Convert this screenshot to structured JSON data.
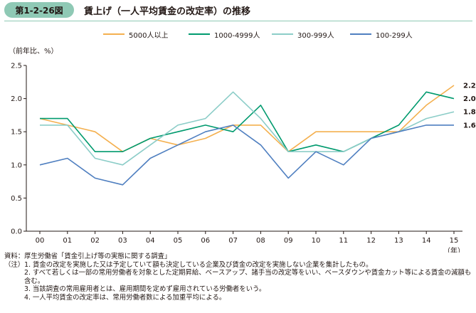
{
  "figure": {
    "number": "第1-2-26図",
    "title": "賃上げ（一人平均賃金の改定率）の推移"
  },
  "chart_data": {
    "type": "line",
    "title": "賃上げ（一人平均賃金の改定率）の推移",
    "y_unit_label": "（前年比、%）",
    "x_unit_label": "（年）",
    "ylim": [
      0,
      2.5
    ],
    "yticks": [
      "0.0",
      "0.5",
      "1.0",
      "1.5",
      "2.0",
      "2.5"
    ],
    "categories": [
      "00",
      "01",
      "02",
      "03",
      "04",
      "05",
      "06",
      "07",
      "08",
      "09",
      "10",
      "11",
      "12",
      "13",
      "14",
      "15"
    ],
    "grid": false,
    "legend_position": "top",
    "series": [
      {
        "name": "5000人以上",
        "color": "#f4b04f",
        "end_label": "",
        "values": [
          1.7,
          1.6,
          1.5,
          1.2,
          1.4,
          1.3,
          1.4,
          1.6,
          1.6,
          1.2,
          1.5,
          1.5,
          1.5,
          1.5,
          1.9,
          2.2
        ]
      },
      {
        "name": "1000-4999人",
        "color": "#009a6e",
        "end_label": "",
        "values": [
          1.7,
          1.7,
          1.2,
          1.2,
          1.4,
          1.5,
          1.6,
          1.5,
          1.9,
          1.2,
          1.3,
          1.2,
          1.4,
          1.6,
          2.1,
          2.0
        ]
      },
      {
        "name": "300-999人",
        "color": "#8ccdc8",
        "end_label": "",
        "values": [
          1.6,
          1.6,
          1.1,
          1.0,
          1.3,
          1.6,
          1.7,
          2.1,
          1.7,
          1.2,
          1.2,
          1.2,
          1.4,
          1.5,
          1.7,
          1.8
        ]
      },
      {
        "name": "100-299人",
        "color": "#4f7fc0",
        "end_label": "",
        "values": [
          1.0,
          1.1,
          0.8,
          0.7,
          1.1,
          1.3,
          1.5,
          1.6,
          1.3,
          0.8,
          1.2,
          1.0,
          1.4,
          1.5,
          1.6,
          1.6
        ]
      }
    ],
    "end_labels": [
      "2.2",
      "2.0",
      "1.8",
      "1.6"
    ]
  },
  "notes": [
    "資料：厚生労働省「賃金引上げ等の実態に関する調査」",
    "（注）1. 賃金の改定を実施した又は予定していて額も決定している企業及び賃金の改定を実施しない企業を集計したもの。",
    "2. すべて若しくは一部の常用労働者を対象とした定期昇給、ベースアップ、諸手当の改定等をいい、ベースダウンや賃金カット等による賃金の減額も含む。",
    "3. 当該調査の常用雇用者とは、雇用期間を定めず雇用されている労働者をいう。",
    "4. 一人平均賃金の改定率は、常用労働者数による加重平均による。"
  ]
}
